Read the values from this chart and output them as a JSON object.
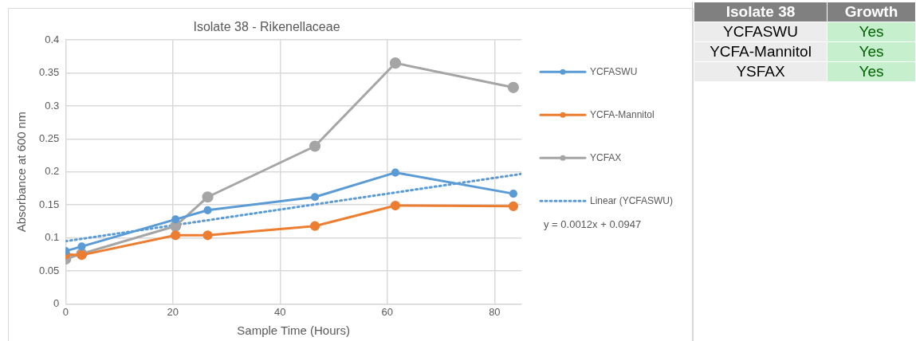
{
  "chart_data": [
    {
      "type": "line",
      "title": "Isolate 38 - Rikenellaceae",
      "xlabel": "Sample Time (Hours)",
      "ylabel": "Absorbance at 600 nm",
      "x": [
        0,
        3,
        20.5,
        26.5,
        46.5,
        61.5,
        83.5
      ],
      "series": [
        {
          "name": "YCFASWU",
          "color": "#5b9bd5",
          "values": [
            0.08,
            0.087,
            0.128,
            0.142,
            0.162,
            0.199,
            0.167
          ]
        },
        {
          "name": "YCFA-Mannitol",
          "color": "#ed7d31",
          "values": [
            0.075,
            0.074,
            0.104,
            0.104,
            0.118,
            0.149,
            0.148
          ]
        },
        {
          "name": "YCFAX",
          "color": "#a5a5a5",
          "values": [
            0.068,
            0.076,
            0.118,
            0.162,
            0.239,
            0.365,
            0.328
          ]
        },
        {
          "name": "Linear (YCFASWU)",
          "color": "#5b9bd5",
          "x": [
            0,
            85
          ],
          "values": [
            0.095,
            0.197
          ],
          "marker": "none",
          "line_style": "dotted"
        }
      ],
      "annotations": [
        "y = 0.0012x + 0.0947"
      ],
      "xlim": [
        0,
        85
      ],
      "xticks": [
        0,
        20,
        40,
        60,
        80
      ],
      "ylim": [
        0,
        0.4
      ],
      "yticks": [
        0,
        0.05,
        0.1,
        0.15,
        0.2,
        0.25,
        0.3,
        0.35,
        0.4
      ],
      "grid": true,
      "legend": "right",
      "marker": "circle",
      "line_style": "solid"
    },
    {
      "type": "other",
      "categories": [
        "Isolate 38",
        "Growth"
      ],
      "y_categories": [
        "YCFASWU",
        "YCFA-Mannitol",
        "YSFAX"
      ],
      "cell_labels": [
        [
          "Yes"
        ],
        [
          "Yes"
        ],
        [
          "Yes"
        ]
      ]
    }
  ]
}
